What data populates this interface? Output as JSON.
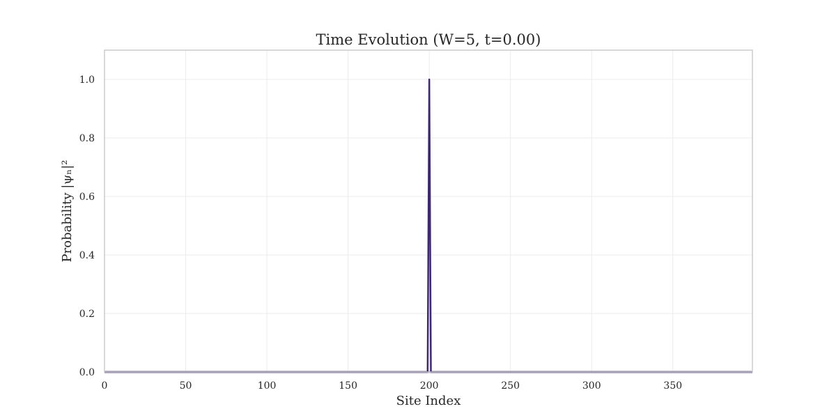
{
  "chart_data": {
    "type": "line",
    "title": "Time Evolution (W=5, t=0.00)",
    "xlabel": "Site Index",
    "ylabel": "Probability |ψₙ|²",
    "xlim": [
      0,
      399
    ],
    "ylim": [
      0,
      1.1
    ],
    "x_ticks": [
      0,
      50,
      100,
      150,
      200,
      250,
      300,
      350
    ],
    "y_ticks": [
      0.0,
      0.2,
      0.4,
      0.6,
      0.8,
      1.0
    ],
    "x_tick_labels": [
      "0",
      "50",
      "100",
      "150",
      "200",
      "250",
      "300",
      "350"
    ],
    "y_tick_labels": [
      "0.0",
      "0.2",
      "0.4",
      "0.6",
      "0.8",
      "1.0"
    ],
    "grid": true,
    "series": [
      {
        "color": "#3d2a6e",
        "x": [
          0,
          199,
          200,
          201,
          399
        ],
        "y": [
          0,
          0,
          1.0,
          0,
          0
        ]
      }
    ]
  }
}
